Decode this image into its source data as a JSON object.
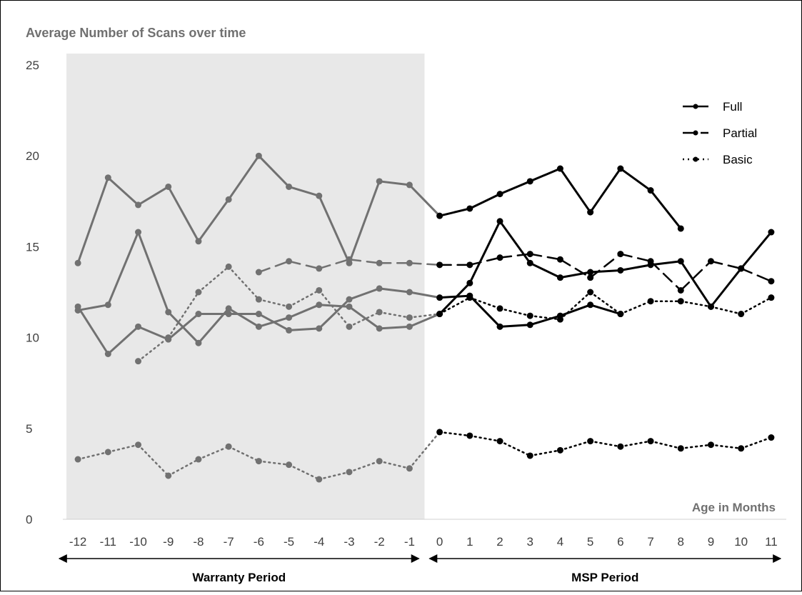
{
  "chart_data": {
    "type": "line",
    "title": "Average Number of Scans over time",
    "xlabel": "Age in Months",
    "ylabel": "",
    "ylim": [
      0,
      25
    ],
    "yticks": [
      0,
      5,
      10,
      15,
      20,
      25
    ],
    "x": [
      -12,
      -11,
      -10,
      -9,
      -8,
      -7,
      -6,
      -5,
      -4,
      -3,
      -2,
      -1,
      0,
      1,
      2,
      3,
      4,
      5,
      6,
      7,
      8,
      9,
      10,
      11
    ],
    "grid": false,
    "legend_position": "top-right",
    "legend": [
      {
        "label": "Full",
        "style": "solid"
      },
      {
        "label": "Partial",
        "style": "dashed"
      },
      {
        "label": "Basic",
        "style": "dotted"
      }
    ],
    "periods": [
      {
        "label": "Warranty Period",
        "from": -12,
        "to": -1,
        "shaded": true
      },
      {
        "label": "MSP Period",
        "from": 0,
        "to": 11,
        "shaded": false
      }
    ],
    "colors": {
      "warranty": "#717171",
      "msp": "#000000",
      "shade": "#e8e8e8"
    },
    "series": [
      {
        "style": "solid",
        "values": [
          14.1,
          18.8,
          17.3,
          18.3,
          15.3,
          17.6,
          20.0,
          18.3,
          17.8,
          14.1,
          18.6,
          18.4,
          16.7,
          17.1,
          17.9,
          18.6,
          19.3,
          16.9,
          19.3,
          18.1,
          16.0,
          null,
          null,
          null
        ]
      },
      {
        "style": "solid",
        "values": [
          11.5,
          11.8,
          15.8,
          11.4,
          9.7,
          11.6,
          10.6,
          11.1,
          11.8,
          11.7,
          10.5,
          10.6,
          11.3,
          13.0,
          16.4,
          14.1,
          13.3,
          13.6,
          13.7,
          14.0,
          14.2,
          11.7,
          13.8,
          15.8
        ]
      },
      {
        "style": "solid",
        "values": [
          11.7,
          9.1,
          10.6,
          9.9,
          11.3,
          11.3,
          11.3,
          10.4,
          10.5,
          12.1,
          12.7,
          12.5,
          12.2,
          12.3,
          10.6,
          10.7,
          11.2,
          11.8,
          11.3,
          null,
          null,
          null,
          null,
          null
        ]
      },
      {
        "style": "dashed",
        "values": [
          null,
          null,
          null,
          null,
          null,
          null,
          13.6,
          14.2,
          13.8,
          14.3,
          14.1,
          14.1,
          14.0,
          14.0,
          14.4,
          14.6,
          14.3,
          13.3,
          14.6,
          14.2,
          12.6,
          14.2,
          13.8,
          13.1
        ]
      },
      {
        "style": "dotted",
        "values": [
          null,
          null,
          8.7,
          10.0,
          12.5,
          13.9,
          12.1,
          11.7,
          12.6,
          10.6,
          11.4,
          11.1,
          11.3,
          12.2,
          11.6,
          11.2,
          11.0,
          12.5,
          11.3,
          12.0,
          12.0,
          11.7,
          11.3,
          12.2
        ]
      },
      {
        "style": "dotted",
        "values": [
          3.3,
          3.7,
          4.1,
          2.4,
          3.3,
          4.0,
          3.2,
          3.0,
          2.2,
          2.6,
          3.2,
          2.8,
          4.8,
          4.6,
          4.3,
          3.5,
          3.8,
          4.3,
          4.0,
          4.3,
          3.9,
          4.1,
          3.9,
          4.5
        ]
      }
    ]
  }
}
